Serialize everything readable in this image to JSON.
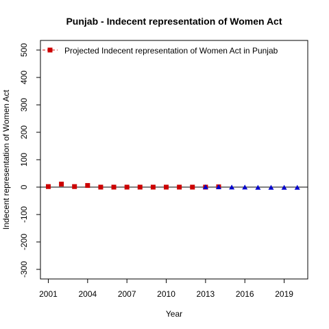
{
  "chart_data": {
    "type": "scatter",
    "title": "Punjab  -  Indecent representation of Women Act",
    "xlabel": "Year",
    "ylabel": "Indecent representation of Women Act",
    "xlim": [
      2000.4,
      2020.8
    ],
    "ylim": [
      -335,
      535
    ],
    "xticks": [
      2001,
      2004,
      2007,
      2010,
      2013,
      2016,
      2019
    ],
    "yticks": [
      -300,
      -200,
      -100,
      0,
      100,
      200,
      300,
      400,
      500
    ],
    "zero_line": 0,
    "legend": {
      "placement": "top-left",
      "label": "Projected  Indecent representation of Women Act  in  Punjab"
    },
    "series": [
      {
        "marker": "square",
        "color": "#cc0000",
        "x": [
          2001,
          2002,
          2003,
          2004,
          2005,
          2006,
          2007,
          2008,
          2009,
          2010,
          2011,
          2012,
          2013,
          2014
        ],
        "y": [
          2,
          11,
          2,
          6,
          0,
          0,
          0,
          0,
          0,
          0,
          0,
          0,
          0,
          1
        ]
      },
      {
        "marker": "triangle",
        "color": "#0000cc",
        "x": [
          2013,
          2014,
          2015,
          2016,
          2017,
          2018,
          2019,
          2020
        ],
        "y": [
          0,
          0,
          -1,
          -1,
          -2,
          -2,
          -2,
          -2
        ]
      }
    ]
  }
}
